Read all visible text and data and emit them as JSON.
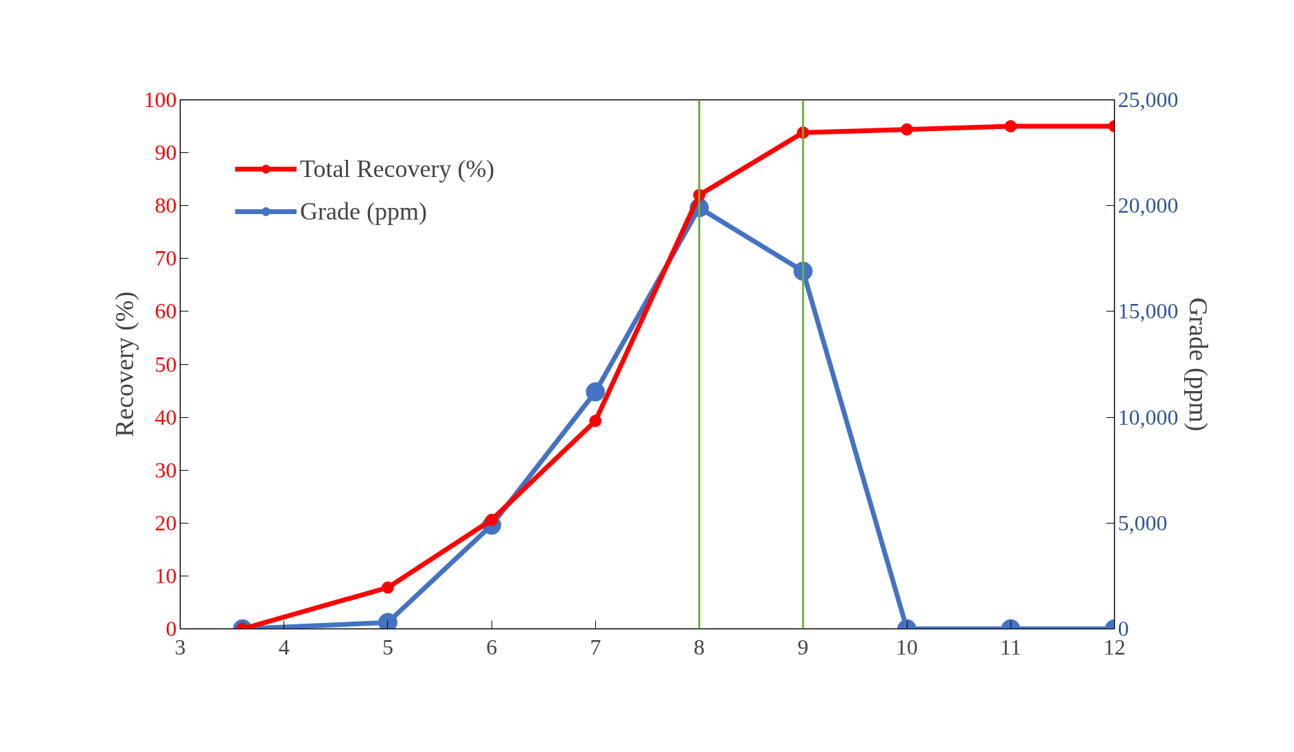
{
  "chart_data": {
    "type": "line",
    "x": [
      3.6,
      5,
      6,
      7,
      8,
      9,
      10,
      11,
      12
    ],
    "series": [
      {
        "name": "Total Recovery (%)",
        "color": "#ff0000",
        "values": [
          0,
          7.8,
          20.6,
          39.3,
          82,
          93.8,
          94.4,
          95,
          95
        ]
      },
      {
        "name": "Grade (ppm)",
        "color": "#4472c4",
        "axis": "y2",
        "values": [
          0,
          300,
          4900,
          11200,
          19900,
          16900,
          0,
          0,
          0
        ]
      }
    ],
    "ylabel": "Recovery (%)",
    "y2label": "Grade (ppm)",
    "xlim": [
      3,
      12
    ],
    "xticks": [
      3,
      4,
      5,
      6,
      7,
      8,
      9,
      10,
      11,
      12
    ],
    "ylim": [
      0,
      100
    ],
    "yticks": [
      0,
      10,
      20,
      30,
      40,
      50,
      60,
      70,
      80,
      90,
      100
    ],
    "y2lim": [
      0,
      25000
    ],
    "y2ticks": [
      {
        "value": 0,
        "label": "0"
      },
      {
        "value": 5000,
        "label": "5,000"
      },
      {
        "value": 10000,
        "label": "10,000"
      },
      {
        "value": 15000,
        "label": "15,000"
      },
      {
        "value": 20000,
        "label": "20,000"
      },
      {
        "value": 25000,
        "label": "25,000"
      }
    ],
    "ref_lines": [
      {
        "axis": "x",
        "value": 8,
        "color": "#70ad47"
      },
      {
        "axis": "x",
        "value": 9,
        "color": "#70ad47"
      }
    ],
    "marker": "circle",
    "line_style": "solid",
    "legend": "top left",
    "grid": false
  }
}
